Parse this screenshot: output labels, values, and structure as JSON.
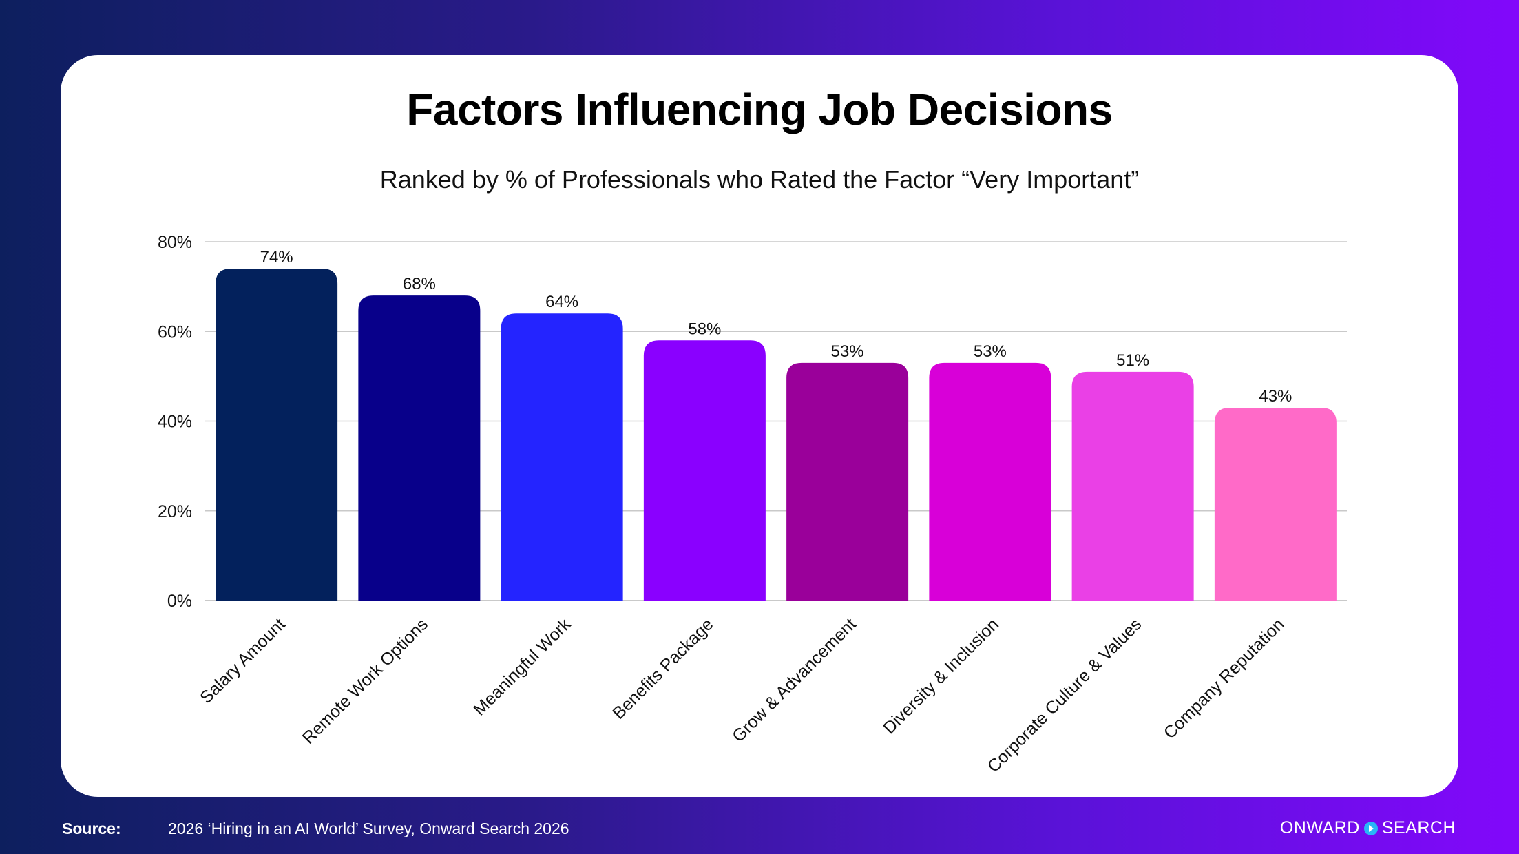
{
  "colors": {
    "background_start": "#0d1f5e",
    "background_end": "#8208fb",
    "card": "#ffffff",
    "grid": "#c9c9c9",
    "logo_accent": "#29b6f6"
  },
  "chart_data": {
    "type": "bar",
    "title": "Factors Influencing Job Decisions",
    "subtitle": "Ranked by % of Professionals who Rated the Factor “Very Important”",
    "categories": [
      "Salary Amount",
      "Remote Work Options",
      "Meaningful Work",
      "Benefits Package",
      "Grow & Advancement",
      "Diversity & Inclusion",
      "Corporate Culture & Values",
      "Company Reputation"
    ],
    "values": [
      74,
      68,
      64,
      58,
      53,
      53,
      51,
      43
    ],
    "value_labels": [
      "74%",
      "68%",
      "64%",
      "58%",
      "53%",
      "53%",
      "51%",
      "43%"
    ],
    "bar_colors": [
      "#03215c",
      "#08008a",
      "#2424ff",
      "#8a00ff",
      "#9a009a",
      "#d800d8",
      "#ea40e6",
      "#ff6ac8"
    ],
    "ylim": [
      0,
      80
    ],
    "yticks": [
      0,
      20,
      40,
      60,
      80
    ],
    "ytick_labels": [
      "0%",
      "20%",
      "40%",
      "60%",
      "80%"
    ],
    "grid": true,
    "xlabel": "",
    "ylabel": ""
  },
  "footer": {
    "source_label": "Source:",
    "source_text": "2026 ‘Hiring in an AI World’ Survey, Onward Search 2026"
  },
  "logo": {
    "left_text": "ONWARD",
    "right_text": "SEARCH",
    "icon": "chevron-circle-icon"
  }
}
